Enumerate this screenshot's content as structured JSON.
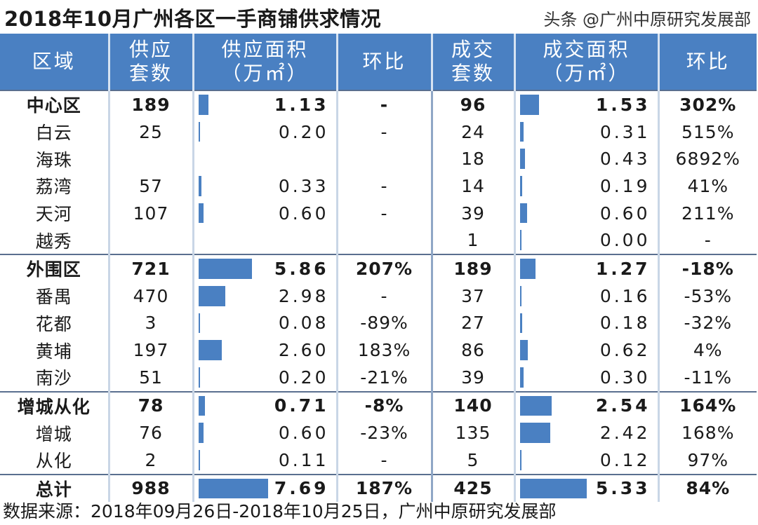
{
  "title": "2018年10月广州各区一手商铺供求情况",
  "headers": {
    "region": "区域",
    "supply_units": "供应\n套数",
    "supply_area": "供应面积\n（万㎡）",
    "supply_mom": "环比",
    "deal_units": "成交\n套数",
    "deal_area": "成交面积\n（万㎡）",
    "deal_mom": "环比"
  },
  "bar_color": "#4a80c2",
  "rows": [
    {
      "group": true,
      "region": "中心区",
      "su": "189",
      "sa": "1.13",
      "sav": 1.13,
      "sm": "-",
      "du": "96",
      "da": "1.53",
      "dav": 1.53,
      "dm": "302%"
    },
    {
      "group": false,
      "region": "白云",
      "su": "25",
      "sa": "0.20",
      "sav": 0.2,
      "sm": "-",
      "du": "24",
      "da": "0.31",
      "dav": 0.31,
      "dm": "515%"
    },
    {
      "group": false,
      "region": "海珠",
      "su": "",
      "sa": "",
      "sav": 0,
      "sm": "",
      "du": "18",
      "da": "0.43",
      "dav": 0.43,
      "dm": "6892%"
    },
    {
      "group": false,
      "region": "荔湾",
      "su": "57",
      "sa": "0.33",
      "sav": 0.33,
      "sm": "-",
      "du": "14",
      "da": "0.19",
      "dav": 0.19,
      "dm": "41%"
    },
    {
      "group": false,
      "region": "天河",
      "su": "107",
      "sa": "0.60",
      "sav": 0.6,
      "sm": "-",
      "du": "39",
      "da": "0.60",
      "dav": 0.6,
      "dm": "211%"
    },
    {
      "group": false,
      "region": "越秀",
      "su": "",
      "sa": "",
      "sav": 0,
      "sm": "",
      "du": "1",
      "da": "0.00",
      "dav": 0,
      "dm": "-"
    },
    {
      "group": true,
      "region": "外围区",
      "su": "721",
      "sa": "5.86",
      "sav": 5.86,
      "sm": "207%",
      "du": "189",
      "da": "1.27",
      "dav": 1.27,
      "dm": "-18%"
    },
    {
      "group": false,
      "region": "番禺",
      "su": "470",
      "sa": "2.98",
      "sav": 2.98,
      "sm": "-",
      "du": "37",
      "da": "0.16",
      "dav": 0.16,
      "dm": "-53%"
    },
    {
      "group": false,
      "region": "花都",
      "su": "3",
      "sa": "0.08",
      "sav": 0.08,
      "sm": "-89%",
      "du": "27",
      "da": "0.18",
      "dav": 0.18,
      "dm": "-32%"
    },
    {
      "group": false,
      "region": "黄埔",
      "su": "197",
      "sa": "2.60",
      "sav": 2.6,
      "sm": "183%",
      "du": "86",
      "da": "0.62",
      "dav": 0.62,
      "dm": "4%"
    },
    {
      "group": false,
      "region": "南沙",
      "su": "51",
      "sa": "0.20",
      "sav": 0.2,
      "sm": "-21%",
      "du": "39",
      "da": "0.30",
      "dav": 0.3,
      "dm": "-11%"
    },
    {
      "group": true,
      "region": "增城从化",
      "su": "78",
      "sa": "0.71",
      "sav": 0.71,
      "sm": "-8%",
      "du": "140",
      "da": "2.54",
      "dav": 2.54,
      "dm": "164%"
    },
    {
      "group": false,
      "region": "增城",
      "su": "76",
      "sa": "0.60",
      "sav": 0.6,
      "sm": "-23%",
      "du": "135",
      "da": "2.42",
      "dav": 2.42,
      "dm": "168%"
    },
    {
      "group": false,
      "region": "从化",
      "su": "2",
      "sa": "0.11",
      "sav": 0.11,
      "sm": "-",
      "du": "5",
      "da": "0.12",
      "dav": 0.12,
      "dm": "97%"
    },
    {
      "group": true,
      "region": "总计",
      "su": "988",
      "sa": "7.69",
      "sav": 7.69,
      "sm": "187%",
      "du": "425",
      "da": "5.33",
      "dav": 5.33,
      "dm": "84%"
    }
  ],
  "source": "数据来源：2018年09月26日-2018年10月25日，广州中原研究发展部",
  "watermark": "头条 @广州中原研究发展部"
}
